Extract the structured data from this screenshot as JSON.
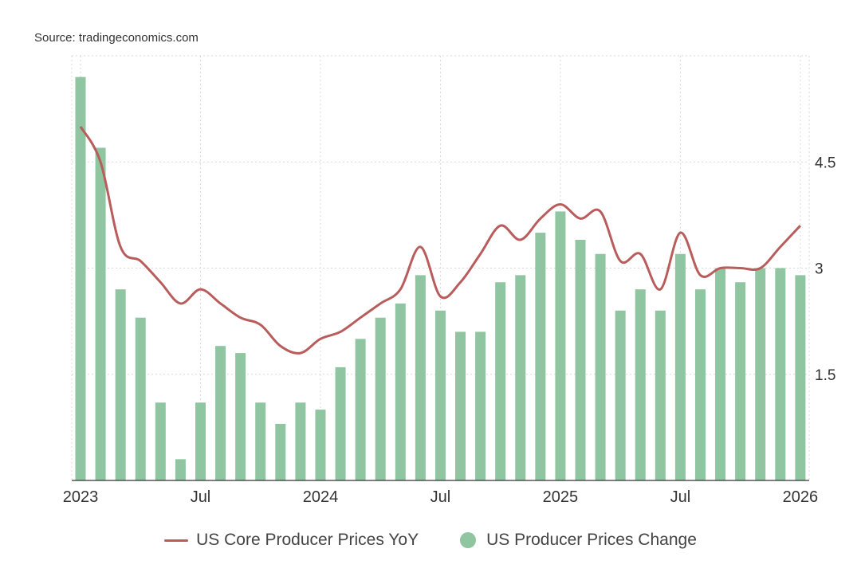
{
  "source": "Source: tradingeconomics.com",
  "colors": {
    "line": "#B85C5C",
    "bars": "#8FC5A0",
    "grid": "#D9D9D9",
    "axis": "#333333"
  },
  "chart_data": {
    "type": "bar",
    "x_tick_labels": [
      "2023",
      "Jul",
      "2024",
      "Jul",
      "2025",
      "Jul",
      "2026"
    ],
    "y_tick_labels": [
      "1.5",
      "3",
      "4.5"
    ],
    "ylim": [
      0,
      6
    ],
    "legend_position": "bottom",
    "series": [
      {
        "name": "US Producer Prices Change",
        "type": "bar",
        "values": [
          5.7,
          4.7,
          2.7,
          2.3,
          1.1,
          0.3,
          1.1,
          1.9,
          1.8,
          1.1,
          0.8,
          1.1,
          1.0,
          1.6,
          2.0,
          2.3,
          2.5,
          2.9,
          2.4,
          2.1,
          2.1,
          2.8,
          2.9,
          3.5,
          3.8,
          3.4,
          3.2,
          2.4,
          2.7,
          2.4,
          3.2,
          2.7,
          3.0,
          2.8,
          3.0,
          3.0,
          2.9
        ]
      },
      {
        "name": "US Core Producer Prices YoY",
        "type": "line",
        "values": [
          5.0,
          4.5,
          3.3,
          3.1,
          2.8,
          2.5,
          2.7,
          2.5,
          2.3,
          2.2,
          1.9,
          1.8,
          2.0,
          2.1,
          2.3,
          2.5,
          2.7,
          3.3,
          2.6,
          2.8,
          3.2,
          3.6,
          3.4,
          3.7,
          3.9,
          3.7,
          3.8,
          3.1,
          3.2,
          2.7,
          3.5,
          2.9,
          3.0,
          3.0,
          3.0,
          3.3,
          3.6
        ]
      }
    ]
  },
  "legend": {
    "line_label": "US Core Producer Prices YoY",
    "bar_label": "US Producer Prices Change"
  }
}
